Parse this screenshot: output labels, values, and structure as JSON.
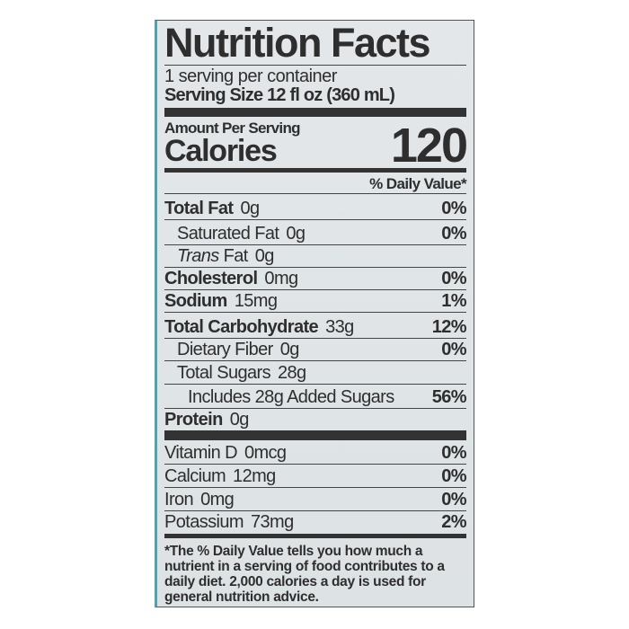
{
  "title": "Nutrition Facts",
  "servings_per_container": "1 serving per container",
  "serving_size": "Serving Size 12 fl oz (360 mL)",
  "amount_per_serving": "Amount Per Serving",
  "calories_label": "Calories",
  "calories_value": "120",
  "daily_value_header": "% Daily Value*",
  "nutrients": [
    {
      "name": "Total Fat",
      "amount": "0g",
      "dv": "0%"
    },
    {
      "name": "Saturated Fat",
      "amount": "0g",
      "dv": "0%"
    },
    {
      "name": "Trans",
      "name_suffix": "Fat",
      "amount": "0g",
      "dv": ""
    },
    {
      "name": "Cholesterol",
      "amount": "0mg",
      "dv": "0%"
    },
    {
      "name": "Sodium",
      "amount": "15mg",
      "dv": "1%"
    },
    {
      "name": "Total Carbohydrate",
      "amount": "33g",
      "dv": "12%"
    },
    {
      "name": "Dietary Fiber",
      "amount": "0g",
      "dv": "0%"
    },
    {
      "name": "Total Sugars",
      "amount": "28g",
      "dv": ""
    },
    {
      "name": "Includes 28g Added Sugars",
      "amount": "",
      "dv": "56%"
    },
    {
      "name": "Protein",
      "amount": "0g",
      "dv": ""
    }
  ],
  "vitamins": [
    {
      "name": "Vitamin D",
      "amount": "0mcg",
      "dv": "0%"
    },
    {
      "name": "Calcium",
      "amount": "12mg",
      "dv": "0%"
    },
    {
      "name": "Iron",
      "amount": "0mg",
      "dv": "0%"
    },
    {
      "name": "Potassium",
      "amount": "73mg",
      "dv": "2%"
    }
  ],
  "footnote": "*The % Daily Value tells you how much a nutrient in a serving of food contributes to a daily diet. 2,000 calories a day is used for general nutrition advice.",
  "colors": {
    "background": "#e1e5e7",
    "text": "#2e2e2e",
    "edge": "#4fa3ad"
  }
}
